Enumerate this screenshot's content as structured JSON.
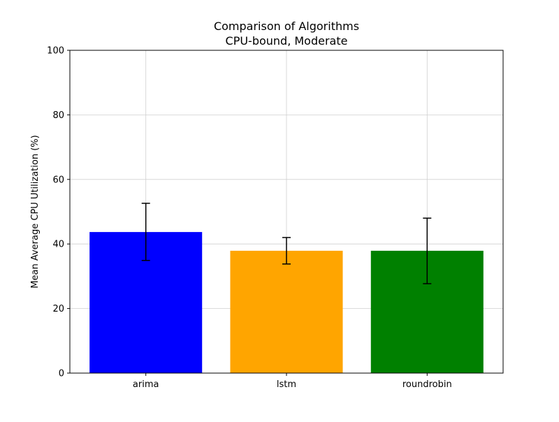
{
  "chart_data": {
    "type": "bar",
    "title": "Comparison of Algorithms",
    "subtitle": "CPU-bound, Moderate",
    "xlabel": "",
    "ylabel": "Mean Average CPU Utilization (%)",
    "categories": [
      "arima",
      "lstm",
      "roundrobin"
    ],
    "values": [
      43.7,
      37.9,
      37.9
    ],
    "error_low": [
      34.9,
      33.8,
      27.7
    ],
    "error_high": [
      52.6,
      42.0,
      48.0
    ],
    "colors": [
      "#0000ff",
      "#ffa500",
      "#008000"
    ],
    "ylim": [
      0,
      100
    ],
    "yticks": [
      0,
      20,
      40,
      60,
      80,
      100
    ],
    "grid": true
  }
}
